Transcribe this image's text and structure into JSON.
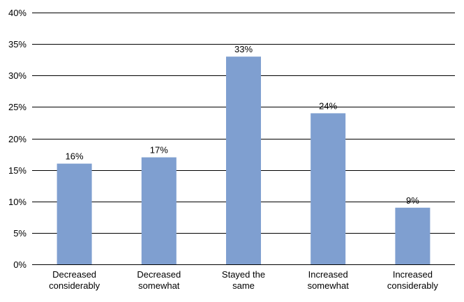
{
  "chart_data": {
    "type": "bar",
    "categories": [
      [
        "Decreased",
        "considerably"
      ],
      [
        "Decreased",
        "somewhat"
      ],
      [
        "Stayed the",
        "same"
      ],
      [
        "Increased",
        "somewhat"
      ],
      [
        "Increased",
        "considerably"
      ]
    ],
    "values": [
      16,
      17,
      33,
      24,
      9
    ],
    "data_labels": [
      "16%",
      "17%",
      "33%",
      "24%",
      "9%"
    ],
    "ylim": [
      0,
      40
    ],
    "y_ticks": [
      0,
      5,
      10,
      15,
      20,
      25,
      30,
      35,
      40
    ],
    "y_tick_labels": [
      "0%",
      "5%",
      "10%",
      "15%",
      "20%",
      "25%",
      "30%",
      "35%",
      "40%"
    ],
    "grid": true,
    "bar_color": "#7f9fd0",
    "grid_color": "#000000"
  }
}
